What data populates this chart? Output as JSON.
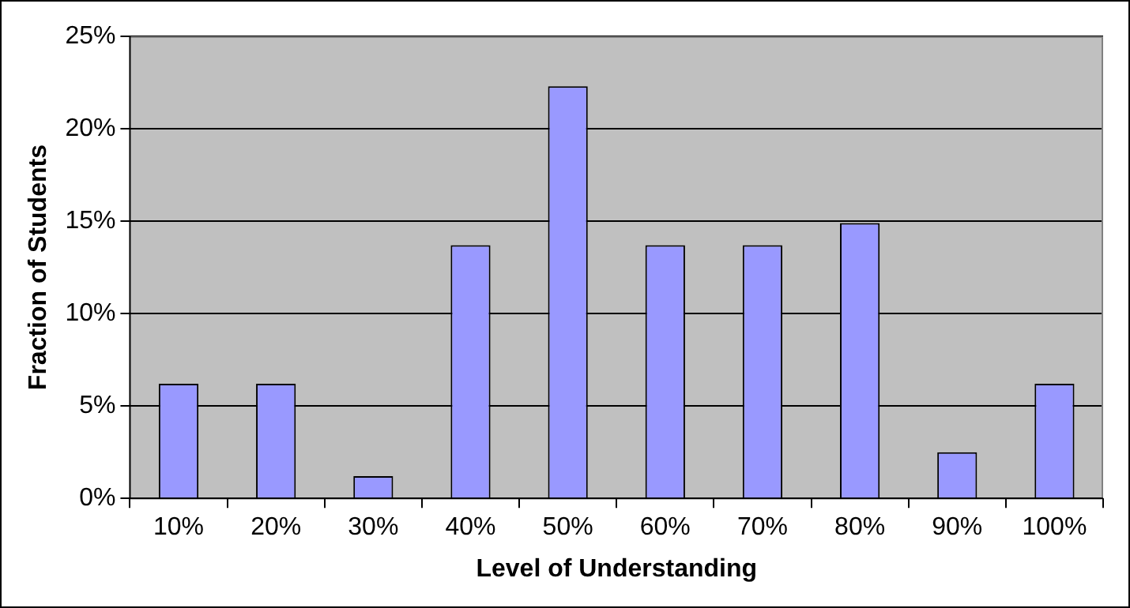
{
  "chart_data": {
    "type": "bar",
    "xlabel": "Level of Understanding",
    "ylabel": "Fraction of Students",
    "categories": [
      "10%",
      "20%",
      "30%",
      "40%",
      "50%",
      "60%",
      "70%",
      "80%",
      "90%",
      "100%"
    ],
    "values": [
      6.2,
      6.2,
      1.2,
      13.7,
      22.3,
      13.7,
      13.7,
      14.9,
      2.5,
      6.2
    ],
    "color": "#9999ff",
    "ylim": [
      0,
      25
    ],
    "yticks": [
      {
        "value": 0,
        "label": "0%"
      },
      {
        "value": 5,
        "label": "5%"
      },
      {
        "value": 10,
        "label": "10%"
      },
      {
        "value": 15,
        "label": "15%"
      },
      {
        "value": 20,
        "label": "20%"
      },
      {
        "value": 25,
        "label": "25%"
      }
    ],
    "grid": "y",
    "legend": false
  }
}
